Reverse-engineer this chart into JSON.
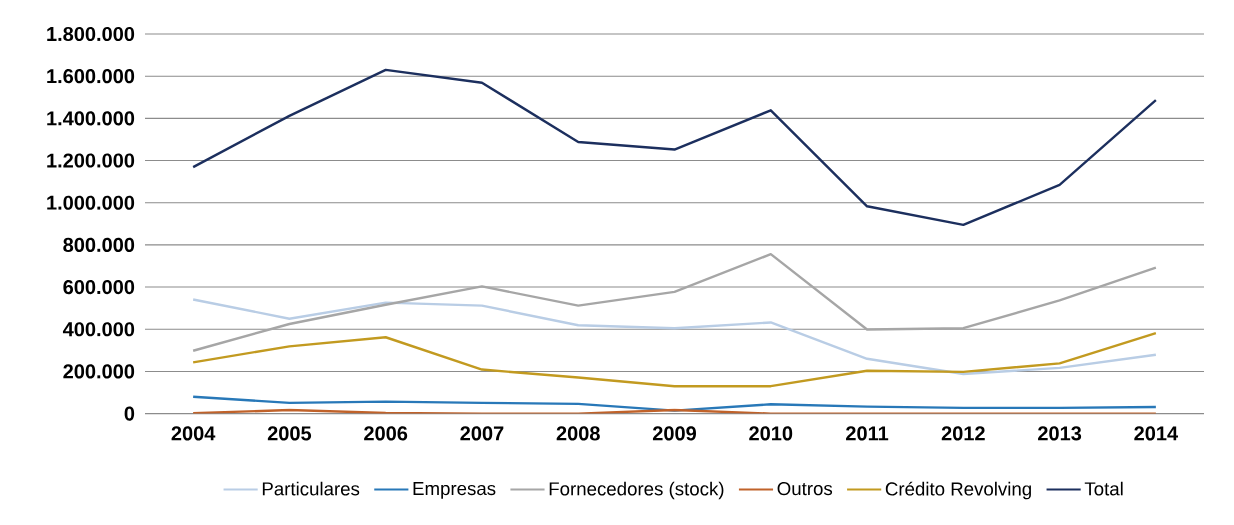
{
  "chart_data": {
    "type": "line",
    "categories": [
      "2004",
      "2005",
      "2006",
      "2007",
      "2008",
      "2009",
      "2010",
      "2011",
      "2012",
      "2013",
      "2014"
    ],
    "series": [
      {
        "name": "Particulares",
        "color": "#b9cde5",
        "values": [
          541000,
          450000,
          526000,
          512000,
          419000,
          405000,
          432000,
          260000,
          188000,
          217000,
          279000
        ]
      },
      {
        "name": "Empresas",
        "color": "#2878b8",
        "values": [
          80000,
          51000,
          57000,
          51000,
          46000,
          14000,
          44000,
          33000,
          27000,
          27000,
          31000
        ]
      },
      {
        "name": "Fornecedores (stock)",
        "color": "#a6a6a6",
        "values": [
          298000,
          425000,
          516000,
          603000,
          512000,
          577000,
          756000,
          399000,
          405000,
          537000,
          692000
        ]
      },
      {
        "name": "Outros",
        "color": "#c0622a",
        "values": [
          2000,
          17000,
          3000,
          0,
          0,
          17000,
          0,
          0,
          0,
          0,
          0
        ]
      },
      {
        "name": "Crédito Revolving",
        "color": "#c29a20",
        "values": [
          243000,
          319000,
          362000,
          209000,
          171000,
          130000,
          130000,
          203000,
          198000,
          238000,
          382000
        ]
      },
      {
        "name": "Total",
        "color": "#1c2f5e",
        "values": [
          1169000,
          1412000,
          1630000,
          1569000,
          1288000,
          1252000,
          1438000,
          983000,
          895000,
          1085000,
          1486000
        ]
      }
    ],
    "ylim": [
      0,
      1800000
    ],
    "yticks": [
      0,
      {
        "value": 200000,
        "label": "200.000"
      },
      {
        "value": 400000,
        "label": "400.000"
      },
      {
        "value": 600000,
        "label": "600.000"
      },
      {
        "value": 800000,
        "label": "800.000"
      },
      {
        "value": 1000000,
        "label": "1.000.000"
      },
      {
        "value": 1200000,
        "label": "1.200.000"
      },
      {
        "value": 1400000,
        "label": "1.400.000"
      },
      {
        "value": 1600000,
        "label": "1.600.000"
      },
      {
        "value": 1800000,
        "label": "1.800.000"
      }
    ],
    "grid": "y",
    "legend": "bottom"
  }
}
